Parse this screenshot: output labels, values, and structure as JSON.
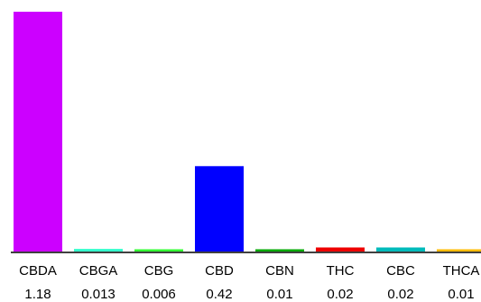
{
  "chart_data": {
    "type": "bar",
    "title": "",
    "xlabel": "",
    "ylabel": "",
    "ylim": [
      0,
      1.18
    ],
    "grid": false,
    "categories": [
      "CBDA",
      "CBGA",
      "CBG",
      "CBD",
      "CBN",
      "THC",
      "CBC",
      "THCA"
    ],
    "value_labels": [
      "1.18",
      "0.013",
      "0.006",
      "0.42",
      "0.01",
      "0.02",
      "0.02",
      "0.01"
    ],
    "values": [
      1.18,
      0.013,
      0.006,
      0.42,
      0.01,
      0.02,
      0.02,
      0.01
    ],
    "colors": [
      "#cc00ff",
      "#33ffcc",
      "#33ff33",
      "#0000ff",
      "#00aa00",
      "#ee0000",
      "#00bbbb",
      "#ffbb00"
    ]
  }
}
